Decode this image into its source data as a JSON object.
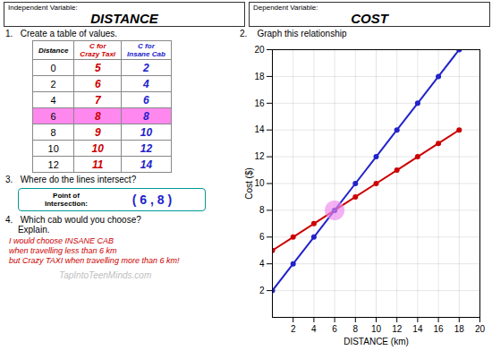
{
  "chart_data": {
    "type": "line",
    "xlabel": "DISTANCE (km)",
    "ylabel": "Cost ($)",
    "xlim": [
      0,
      20
    ],
    "ylim": [
      0,
      20
    ],
    "xticks": [
      2,
      4,
      6,
      8,
      10,
      12,
      14,
      16,
      18,
      20
    ],
    "yticks": [
      2,
      4,
      6,
      8,
      10,
      12,
      14,
      16,
      18,
      20
    ],
    "grid": true,
    "marker": "circle",
    "x": [
      0,
      2,
      4,
      6,
      8,
      10,
      12,
      14,
      16,
      18
    ],
    "series": [
      {
        "name": "Crazy Taxi",
        "color": "#cc0000",
        "values": [
          5,
          6,
          7,
          8,
          9,
          10,
          11,
          12,
          13,
          14
        ]
      },
      {
        "name": "Insane Cab",
        "color": "#2222cc",
        "values": [
          2,
          4,
          6,
          8,
          10,
          12,
          14,
          16,
          18,
          20
        ]
      }
    ],
    "headers": [
      {
        "label": "Independent Variable:",
        "value": "DISTANCE"
      },
      {
        "label": "Dependent Variable:",
        "value": "COST"
      }
    ],
    "sections": [
      "1.   Create a table of values.",
      "2.    Graph this relationship",
      "3.   Where do the lines intersect?",
      "4.   Which cab would you choose?\n     Explain."
    ],
    "table": {
      "columns": [
        "Distance",
        "C for\nCrazy Taxi",
        "C for\nInsane Cab"
      ],
      "rows": [
        [
          0,
          5,
          2
        ],
        [
          2,
          6,
          4
        ],
        [
          4,
          7,
          6
        ],
        [
          6,
          8,
          8
        ],
        [
          8,
          9,
          10
        ],
        [
          10,
          10,
          12
        ],
        [
          12,
          11,
          14
        ]
      ],
      "highlight_distance": 6,
      "highlight_color": "#ff88ee"
    },
    "intersection": {
      "label": "Point of\nIntersection:",
      "value_label": "( 6 , 8 )",
      "x": 6,
      "y": 8,
      "color": "#ee88ee"
    },
    "answer": [
      "I would choose INSANE CAB",
      "when travelling less than 6 km",
      "but Crazy TAXI when travelling more than 6 km!"
    ],
    "watermark": "TapIntoTeenMinds.com"
  }
}
